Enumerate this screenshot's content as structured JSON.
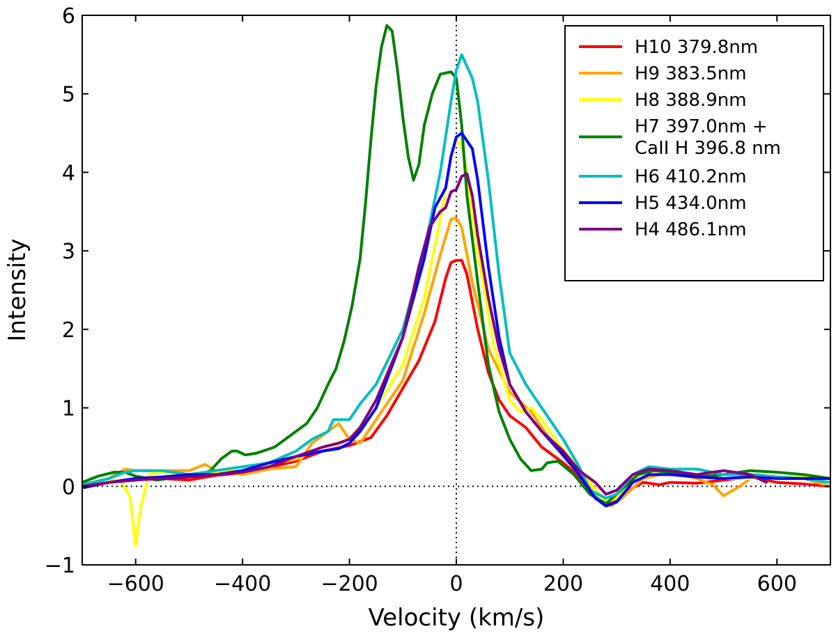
{
  "chart_data": {
    "type": "line",
    "title": "",
    "xlabel": "Velocity (km/s)",
    "ylabel": "Intensity",
    "xlim": [
      -700,
      700
    ],
    "ylim": [
      -1,
      6
    ],
    "xticks": [
      -600,
      -400,
      -200,
      0,
      200,
      400,
      600
    ],
    "xtick_labels": [
      "−600",
      "−400",
      "−200",
      "0",
      "200",
      "400",
      "600"
    ],
    "yticks": [
      -1,
      0,
      1,
      2,
      3,
      4,
      5,
      6
    ],
    "ytick_labels": [
      "−1",
      "0",
      "1",
      "2",
      "3",
      "4",
      "5",
      "6"
    ],
    "grid": false,
    "legend_position": "top-right",
    "reference_lines": [
      {
        "orientation": "horizontal",
        "value": 0,
        "style": "dotted",
        "color": "#000000"
      },
      {
        "orientation": "vertical",
        "value": 0,
        "style": "dotted",
        "color": "#000000"
      }
    ],
    "series": [
      {
        "name": "H10 379.8nm",
        "label_lines": [
          "H10 379.8nm"
        ],
        "color": "#ff0000",
        "x": [
          -700,
          -650,
          -600,
          -550,
          -500,
          -450,
          -400,
          -350,
          -300,
          -250,
          -200,
          -160,
          -130,
          -100,
          -70,
          -40,
          -20,
          -10,
          0,
          10,
          20,
          40,
          60,
          80,
          100,
          130,
          160,
          200,
          230,
          260,
          280,
          300,
          330,
          350,
          380,
          400,
          450,
          500,
          550,
          600,
          650,
          700
        ],
        "y": [
          0.0,
          0.05,
          0.1,
          0.1,
          0.08,
          0.14,
          0.17,
          0.24,
          0.32,
          0.45,
          0.52,
          0.62,
          0.9,
          1.25,
          1.6,
          2.1,
          2.65,
          2.85,
          2.88,
          2.88,
          2.7,
          2.0,
          1.45,
          1.1,
          0.9,
          0.75,
          0.5,
          0.3,
          0.12,
          -0.15,
          -0.22,
          -0.18,
          -0.02,
          0.05,
          0.02,
          0.05,
          0.04,
          0.08,
          0.12,
          0.05,
          0.03,
          0.0
        ]
      },
      {
        "name": "H9 383.5nm",
        "label_lines": [
          "H9 383.5nm"
        ],
        "color": "#ffa500",
        "x": [
          -700,
          -650,
          -620,
          -600,
          -550,
          -500,
          -470,
          -450,
          -400,
          -350,
          -300,
          -270,
          -250,
          -220,
          -200,
          -180,
          -150,
          -100,
          -60,
          -30,
          -10,
          0,
          10,
          30,
          60,
          100,
          140,
          180,
          210,
          240,
          270,
          290,
          310,
          350,
          400,
          450,
          480,
          500,
          530,
          560,
          600,
          650,
          700
        ],
        "y": [
          0.0,
          0.1,
          0.22,
          0.2,
          0.2,
          0.2,
          0.28,
          0.2,
          0.15,
          0.22,
          0.25,
          0.55,
          0.65,
          0.8,
          0.6,
          0.55,
          0.85,
          1.35,
          2.2,
          2.95,
          3.4,
          3.42,
          3.3,
          2.6,
          1.75,
          1.2,
          0.95,
          0.55,
          0.3,
          0.08,
          -0.2,
          -0.25,
          -0.15,
          0.1,
          0.18,
          0.1,
          0.02,
          -0.12,
          0.0,
          0.15,
          0.12,
          0.1,
          0.0
        ]
      },
      {
        "name": "H8 388.9nm",
        "label_lines": [
          "H8 388.9nm"
        ],
        "color": "#ffff00",
        "x": [
          -700,
          -650,
          -625,
          -610,
          -600,
          -590,
          -575,
          -550,
          -500,
          -450,
          -400,
          -350,
          -300,
          -250,
          -200,
          -150,
          -100,
          -60,
          -30,
          -10,
          0,
          10,
          20,
          40,
          70,
          100,
          120,
          140,
          160,
          190,
          220,
          250,
          280,
          300,
          330,
          360,
          400,
          450,
          500,
          550,
          600,
          650,
          700
        ],
        "y": [
          0.0,
          0.1,
          0.05,
          -0.15,
          -0.75,
          -0.25,
          0.15,
          0.18,
          0.15,
          0.18,
          0.2,
          0.28,
          0.35,
          0.5,
          0.6,
          1.0,
          1.55,
          2.4,
          3.4,
          4.2,
          4.4,
          4.35,
          4.0,
          3.0,
          1.8,
          1.1,
          0.95,
          1.0,
          0.85,
          0.55,
          0.3,
          0.05,
          -0.2,
          -0.15,
          0.1,
          0.2,
          0.18,
          0.12,
          0.1,
          0.1,
          0.12,
          0.12,
          0.1
        ]
      },
      {
        "name": "H7 397.0nm + CaII H 396.8 nm",
        "label_lines": [
          "H7 397.0nm +",
          "CaII H 396.8 nm"
        ],
        "color": "#008000",
        "x": [
          -700,
          -670,
          -640,
          -620,
          -600,
          -560,
          -520,
          -480,
          -460,
          -440,
          -420,
          -410,
          -395,
          -375,
          -340,
          -310,
          -280,
          -260,
          -240,
          -225,
          -210,
          -195,
          -180,
          -170,
          -160,
          -150,
          -140,
          -130,
          -120,
          -110,
          -100,
          -90,
          -80,
          -70,
          -60,
          -45,
          -30,
          -10,
          0,
          10,
          20,
          40,
          60,
          80,
          100,
          120,
          140,
          160,
          170,
          190,
          220,
          250,
          280,
          300,
          340,
          370,
          400,
          450,
          500,
          550,
          600,
          650,
          700
        ],
        "y": [
          0.05,
          0.13,
          0.18,
          0.18,
          0.13,
          0.08,
          0.12,
          0.15,
          0.2,
          0.35,
          0.45,
          0.45,
          0.4,
          0.42,
          0.5,
          0.65,
          0.8,
          1.0,
          1.3,
          1.5,
          1.85,
          2.3,
          2.9,
          3.6,
          4.4,
          5.1,
          5.6,
          5.87,
          5.8,
          5.3,
          4.7,
          4.2,
          3.9,
          4.1,
          4.6,
          5.0,
          5.25,
          5.28,
          5.2,
          4.6,
          3.7,
          2.6,
          1.55,
          0.95,
          0.6,
          0.35,
          0.2,
          0.22,
          0.3,
          0.32,
          0.15,
          -0.1,
          -0.22,
          -0.1,
          0.15,
          0.2,
          0.18,
          0.12,
          0.15,
          0.2,
          0.18,
          0.15,
          0.1
        ]
      },
      {
        "name": "H6 410.2nm",
        "label_lines": [
          "H6 410.2nm"
        ],
        "color": "#00bfbf",
        "x": [
          -700,
          -650,
          -620,
          -600,
          -550,
          -500,
          -450,
          -400,
          -350,
          -300,
          -270,
          -240,
          -230,
          -220,
          -200,
          -180,
          -150,
          -100,
          -60,
          -30,
          -10,
          0,
          10,
          20,
          30,
          40,
          60,
          80,
          100,
          130,
          160,
          200,
          230,
          250,
          280,
          300,
          330,
          360,
          400,
          450,
          500,
          550,
          600,
          650,
          700
        ],
        "y": [
          0.02,
          0.1,
          0.18,
          0.2,
          0.2,
          0.15,
          0.2,
          0.25,
          0.3,
          0.45,
          0.6,
          0.7,
          0.85,
          0.85,
          0.85,
          1.05,
          1.3,
          2.0,
          3.0,
          4.0,
          4.9,
          5.3,
          5.5,
          5.35,
          5.2,
          4.9,
          3.9,
          2.7,
          1.7,
          1.3,
          1.0,
          0.6,
          0.25,
          -0.05,
          -0.15,
          -0.1,
          0.15,
          0.25,
          0.22,
          0.22,
          0.15,
          0.15,
          0.12,
          0.1,
          0.05
        ]
      },
      {
        "name": "H5 434.0nm",
        "label_lines": [
          "H5 434.0nm"
        ],
        "color": "#0000ff",
        "x": [
          -700,
          -650,
          -600,
          -550,
          -500,
          -450,
          -400,
          -350,
          -300,
          -250,
          -220,
          -200,
          -180,
          -150,
          -100,
          -60,
          -40,
          -20,
          -10,
          0,
          10,
          20,
          30,
          40,
          60,
          80,
          100,
          130,
          160,
          200,
          230,
          260,
          280,
          300,
          330,
          360,
          400,
          450,
          500,
          550,
          600,
          650,
          700
        ],
        "y": [
          -0.02,
          0.05,
          0.1,
          0.12,
          0.15,
          0.15,
          0.2,
          0.3,
          0.38,
          0.45,
          0.48,
          0.55,
          0.7,
          1.0,
          1.9,
          2.9,
          3.55,
          3.8,
          4.2,
          4.45,
          4.5,
          4.4,
          4.3,
          3.9,
          2.8,
          1.9,
          1.3,
          0.95,
          0.7,
          0.4,
          0.15,
          -0.15,
          -0.25,
          -0.2,
          0.05,
          0.15,
          0.15,
          0.12,
          0.1,
          0.12,
          0.1,
          0.1,
          0.1
        ]
      },
      {
        "name": "H4 486.1nm",
        "label_lines": [
          "H4 486.1nm"
        ],
        "color": "#800080",
        "x": [
          -700,
          -650,
          -600,
          -550,
          -500,
          -450,
          -400,
          -350,
          -300,
          -250,
          -220,
          -200,
          -180,
          -150,
          -100,
          -70,
          -50,
          -30,
          -20,
          -10,
          0,
          10,
          20,
          30,
          40,
          60,
          80,
          100,
          130,
          160,
          200,
          230,
          260,
          280,
          300,
          330,
          360,
          400,
          450,
          500,
          550,
          580
        ],
        "y": [
          0.0,
          0.05,
          0.08,
          0.1,
          0.12,
          0.15,
          0.18,
          0.25,
          0.38,
          0.5,
          0.55,
          0.6,
          0.75,
          1.1,
          1.9,
          2.8,
          3.3,
          3.5,
          3.55,
          3.75,
          3.78,
          3.95,
          3.98,
          3.7,
          3.2,
          2.4,
          1.75,
          1.3,
          0.95,
          0.7,
          0.45,
          0.2,
          0.05,
          -0.1,
          -0.05,
          0.15,
          0.22,
          0.2,
          0.15,
          0.2,
          0.15,
          0.05
        ]
      }
    ]
  }
}
